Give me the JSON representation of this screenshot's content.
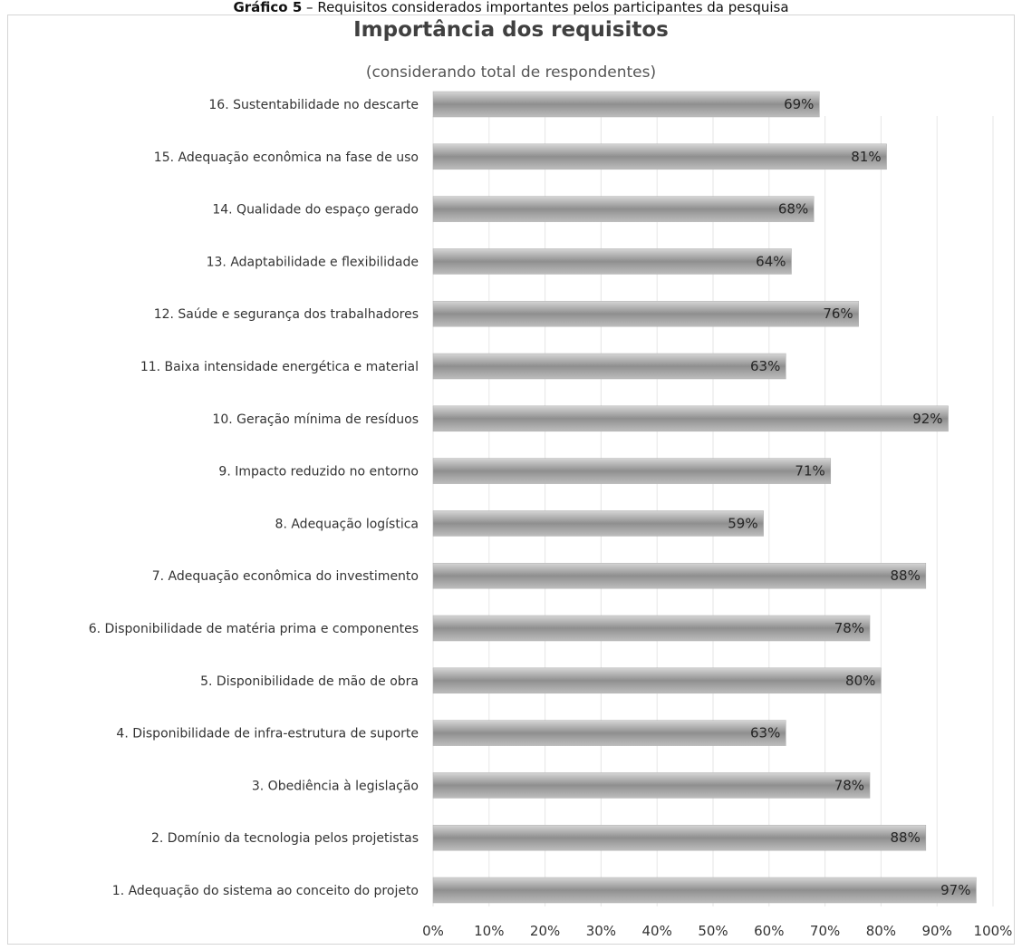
{
  "caption": {
    "bold": "Gráfico 5",
    "text": " – Requisitos considerados importantes pelos participantes da pesquisa"
  },
  "chart_data": {
    "type": "bar",
    "orientation": "horizontal",
    "title": "Importância dos requisitos",
    "subtitle": "(considerando total de respondentes)",
    "categories": [
      "1. Adequação do sistema ao conceito do projeto",
      "2. Domínio da tecnologia pelos projetistas",
      "3. Obediência à legislação",
      "4. Disponibilidade de infra-estrutura de suporte",
      "5. Disponibilidade de mão de obra",
      "6. Disponibilidade de matéria prima e componentes",
      "7. Adequação econômica do investimento",
      "8. Adequação logística",
      "9. Impacto reduzido no entorno",
      "10. Geração mínima de resíduos",
      "11. Baixa intensidade energética e material",
      "12. Saúde e segurança dos trabalhadores",
      "13. Adaptabilidade e flexibilidade",
      "14. Qualidade do espaço gerado",
      "15. Adequação econômica na fase de uso",
      "16. Sustentabilidade no descarte"
    ],
    "values": [
      97,
      88,
      78,
      63,
      80,
      78,
      88,
      59,
      71,
      92,
      63,
      76,
      64,
      68,
      81,
      69
    ],
    "value_labels": [
      "97%",
      "88%",
      "78%",
      "63%",
      "80%",
      "78%",
      "88%",
      "59%",
      "71%",
      "92%",
      "63%",
      "76%",
      "64%",
      "68%",
      "81%",
      "69%"
    ],
    "x_ticks": [
      "0%",
      "10%",
      "20%",
      "30%",
      "40%",
      "50%",
      "60%",
      "70%",
      "80%",
      "90%",
      "100%"
    ],
    "xlim": [
      0,
      100
    ],
    "xlabel": "",
    "ylabel": "",
    "grid": "vertical",
    "legend": "none",
    "bar_color": "#9a9a9a"
  }
}
